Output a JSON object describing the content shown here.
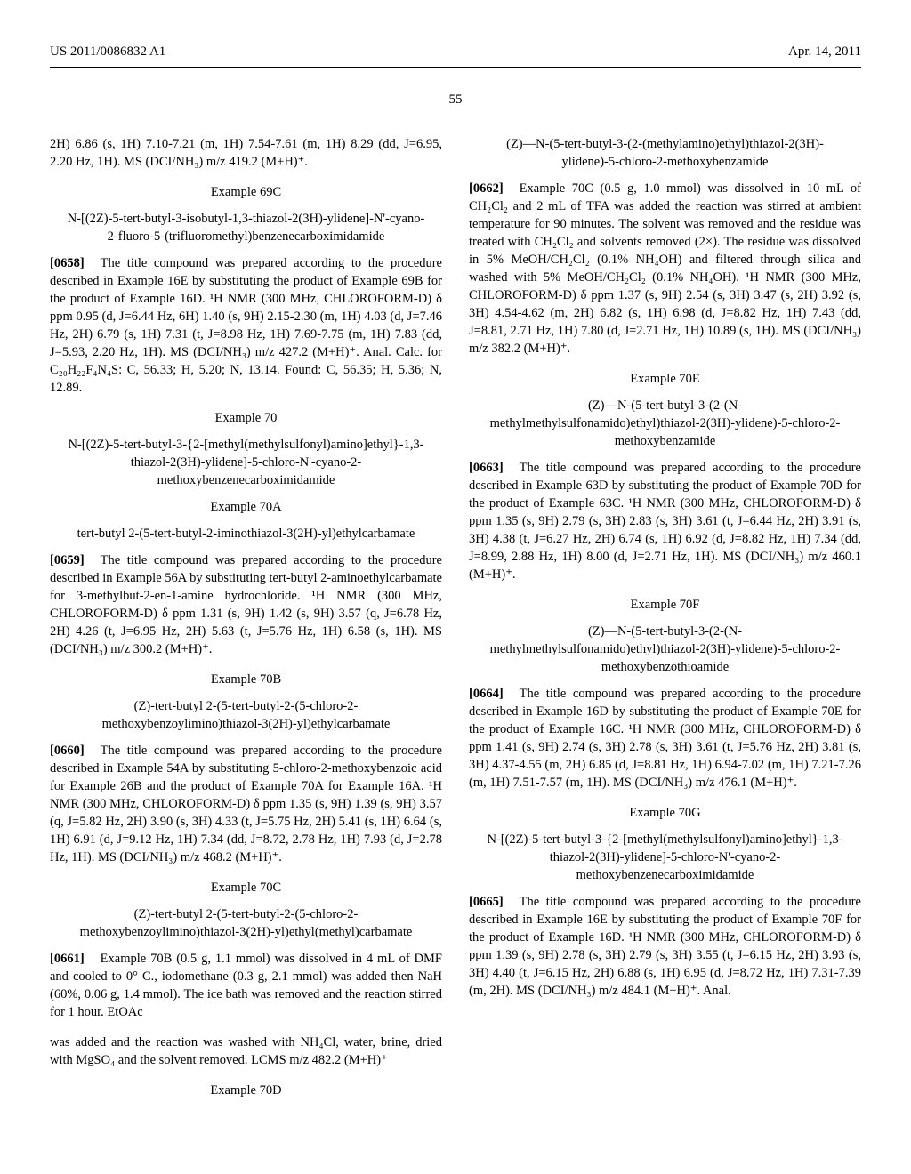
{
  "header": {
    "left": "US 2011/0086832 A1",
    "right": "Apr. 14, 2011"
  },
  "page_number": "55",
  "left": {
    "frag1": "2H) 6.86 (s, 1H) 7.10-7.21 (m, 1H) 7.54-7.61 (m, 1H) 8.29 (dd, J=6.95, 2.20 Hz, 1H). MS (DCI/NH₃) m/z 419.2 (M+H)⁺.",
    "ex69C_t": "Example 69C",
    "ex69C_s": "N-[(2Z)-5-tert-butyl-3-isobutyl-1,3-thiazol-2(3H)-ylidene]-N'-cyano-2-fluoro-5-(trifluoromethyl)benzenecarboximidamide",
    "p0658n": "[0658]",
    "p0658": "The title compound was prepared according to the procedure described in Example 16E by substituting the product of Example 69B for the product of Example 16D. ¹H NMR (300 MHz, CHLOROFORM-D) δ ppm 0.95 (d, J=6.44 Hz, 6H) 1.40 (s, 9H) 2.15-2.30 (m, 1H) 4.03 (d, J=7.46 Hz, 2H) 6.79 (s, 1H) 7.31 (t, J=8.98 Hz, 1H) 7.69-7.75 (m, 1H) 7.83 (dd, J=5.93, 2.20 Hz, 1H). MS (DCI/NH₃) m/z 427.2 (M+H)⁺. Anal. Calc. for C₂₀H₂₂F₄N₄S: C, 56.33; H, 5.20; N, 13.14. Found: C, 56.35; H, 5.36; N, 12.89.",
    "ex70_t": "Example 70",
    "ex70_s": "N-[(2Z)-5-tert-butyl-3-{2-[methyl(methylsulfonyl)amino]ethyl}-1,3-thiazol-2(3H)-ylidene]-5-chloro-N'-cyano-2-methoxybenzenecarboximidamide",
    "ex70A_t": "Example 70A",
    "ex70A_s": "tert-butyl 2-(5-tert-butyl-2-iminothiazol-3(2H)-yl)ethylcarbamate",
    "p0659n": "[0659]",
    "p0659": "The title compound was prepared according to the procedure described in Example 56A by substituting tert-butyl 2-aminoethylcarbamate for 3-methylbut-2-en-1-amine hydrochloride. ¹H NMR (300 MHz, CHLOROFORM-D) δ ppm 1.31 (s, 9H) 1.42 (s, 9H) 3.57 (q, J=6.78 Hz, 2H) 4.26 (t, J=6.95 Hz, 2H) 5.63 (t, J=5.76 Hz, 1H) 6.58 (s, 1H). MS (DCI/NH₃) m/z 300.2 (M+H)⁺.",
    "ex70B_t": "Example 70B",
    "ex70B_s": "(Z)-tert-butyl 2-(5-tert-butyl-2-(5-chloro-2-methoxybenzoylimino)thiazol-3(2H)-yl)ethylcarbamate",
    "p0660n": "[0660]",
    "p0660": "The title compound was prepared according to the procedure described in Example 54A by substituting 5-chloro-2-methoxybenzoic acid for Example 26B and the product of Example 70A for Example 16A. ¹H NMR (300 MHz, CHLOROFORM-D) δ ppm 1.35 (s, 9H) 1.39 (s, 9H) 3.57 (q, J=5.82 Hz, 2H) 3.90 (s, 3H) 4.33 (t, J=5.75 Hz, 2H) 5.41 (s, 1H) 6.64 (s, 1H) 6.91 (d, J=9.12 Hz, 1H) 7.34 (dd, J=8.72, 2.78 Hz, 1H) 7.93 (d, J=2.78 Hz, 1H). MS (DCI/NH₃) m/z 468.2 (M+H)⁺.",
    "ex70C_t": "Example 70C",
    "ex70C_s": "(Z)-tert-butyl 2-(5-tert-butyl-2-(5-chloro-2-methoxybenzoylimino)thiazol-3(2H)-yl)ethyl(methyl)carbamate",
    "p0661n": "[0661]",
    "p0661": "Example 70B (0.5 g, 1.1 mmol) was dissolved in 4 mL of DMF and cooled to 0° C., iodomethane (0.3 g, 2.1 mmol) was added then NaH (60%, 0.06 g, 1.4 mmol). The ice bath was removed and the reaction stirred for 1 hour. EtOAc"
  },
  "right": {
    "frag2": "was added and the reaction was washed with NH₄Cl, water, brine, dried with MgSO₄ and the solvent removed. LCMS m/z 482.2 (M+H)⁺",
    "ex70D_t": "Example 70D",
    "ex70D_s": "(Z)—N-(5-tert-butyl-3-(2-(methylamino)ethyl)thiazol-2(3H)-ylidene)-5-chloro-2-methoxybenzamide",
    "p0662n": "[0662]",
    "p0662": "Example 70C (0.5 g, 1.0 mmol) was dissolved in 10 mL of CH₂Cl₂ and 2 mL of TFA was added the reaction was stirred at ambient temperature for 90 minutes. The solvent was removed and the residue was treated with CH₂Cl₂ and solvents removed (2×). The residue was dissolved in 5% MeOH/CH₂Cl₂ (0.1% NH₄OH) and filtered through silica and washed with 5% MeOH/CH₂Cl₂ (0.1% NH₄OH). ¹H NMR (300 MHz, CHLOROFORM-D) δ ppm 1.37 (s, 9H) 2.54 (s, 3H) 3.47 (s, 2H) 3.92 (s, 3H) 4.54-4.62 (m, 2H) 6.82 (s, 1H) 6.98 (d, J=8.82 Hz, 1H) 7.43 (dd, J=8.81, 2.71 Hz, 1H) 7.80 (d, J=2.71 Hz, 1H) 10.89 (s, 1H). MS (DCI/NH₃) m/z 382.2 (M+H)⁺.",
    "ex70E_t": "Example 70E",
    "ex70E_s": "(Z)—N-(5-tert-butyl-3-(2-(N-methylmethylsulfonamido)ethyl)thiazol-2(3H)-ylidene)-5-chloro-2-methoxybenzamide",
    "p0663n": "[0663]",
    "p0663": "The title compound was prepared according to the procedure described in Example 63D by substituting the product of Example 70D for the product of Example 63C. ¹H NMR (300 MHz, CHLOROFORM-D) δ ppm 1.35 (s, 9H) 2.79 (s, 3H) 2.83 (s, 3H) 3.61 (t, J=6.44 Hz, 2H) 3.91 (s, 3H) 4.38 (t, J=6.27 Hz, 2H) 6.74 (s, 1H) 6.92 (d, J=8.82 Hz, 1H) 7.34 (dd, J=8.99, 2.88 Hz, 1H) 8.00 (d, J=2.71 Hz, 1H). MS (DCI/NH₃) m/z 460.1 (M+H)⁺.",
    "ex70F_t": "Example 70F",
    "ex70F_s": "(Z)—N-(5-tert-butyl-3-(2-(N-methylmethylsulfonamido)ethyl)thiazol-2(3H)-ylidene)-5-chloro-2-methoxybenzothioamide",
    "p0664n": "[0664]",
    "p0664": "The title compound was prepared according to the procedure described in Example 16D by substituting the product of Example 70E for the product of Example 16C. ¹H NMR (300 MHz, CHLOROFORM-D) δ ppm 1.41 (s, 9H) 2.74 (s, 3H) 2.78 (s, 3H) 3.61 (t, J=5.76 Hz, 2H) 3.81 (s, 3H) 4.37-4.55 (m, 2H) 6.85 (d, J=8.81 Hz, 1H) 6.94-7.02 (m, 1H) 7.21-7.26 (m, 1H) 7.51-7.57 (m, 1H). MS (DCI/NH₃) m/z 476.1 (M+H)⁺.",
    "ex70G_t": "Example 70G",
    "ex70G_s": "N-[(2Z)-5-tert-butyl-3-{2-[methyl(methylsulfonyl)amino]ethyl}-1,3-thiazol-2(3H)-ylidene]-5-chloro-N'-cyano-2-methoxybenzenecarboximidamide",
    "p0665n": "[0665]",
    "p0665": "The title compound was prepared according to the procedure described in Example 16E by substituting the product of Example 70F for the product of Example 16D. ¹H NMR (300 MHz, CHLOROFORM-D) δ ppm 1.39 (s, 9H) 2.78 (s, 3H) 2.79 (s, 3H) 3.55 (t, J=6.15 Hz, 2H) 3.93 (s, 3H) 4.40 (t, J=6.15 Hz, 2H) 6.88 (s, 1H) 6.95 (d, J=8.72 Hz, 1H) 7.31-7.39 (m, 2H). MS (DCI/NH₃) m/z 484.1 (M+H)⁺. Anal."
  }
}
